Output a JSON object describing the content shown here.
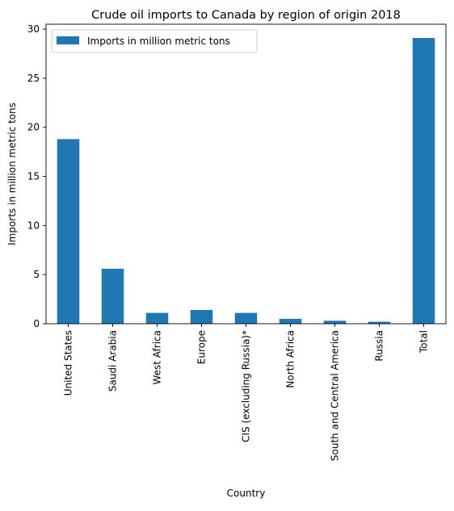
{
  "chart_data": {
    "type": "bar",
    "title": "Crude oil imports to Canada by region of origin 2018",
    "xlabel": "Country",
    "ylabel": "Imports in million metric tons",
    "categories": [
      "United States",
      "Saudi Arabia",
      "West Africa",
      "Europe",
      "CIS (excluding Russia)*",
      "North Africa",
      "South and Central America",
      "Russia",
      "Total"
    ],
    "series": [
      {
        "name": "Imports in million metric tons",
        "values": [
          18.8,
          5.6,
          1.1,
          1.4,
          1.1,
          0.5,
          0.3,
          0.2,
          29.1
        ],
        "color": "#1f77b4"
      }
    ],
    "ylim": [
      0,
      30.5
    ],
    "yticks": [
      0,
      5,
      10,
      15,
      20,
      25,
      30
    ],
    "grid": false,
    "legend_position": "top-left"
  }
}
